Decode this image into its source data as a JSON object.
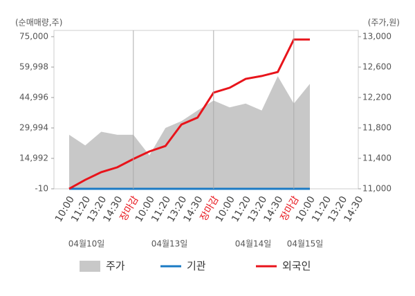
{
  "chart_data": {
    "type": "line",
    "y_label": "(순매매량,주)",
    "y2_label": "(주가,원)",
    "categories": [
      "10:00",
      "11:20",
      "13:20",
      "14:30",
      "장마감",
      "10:00",
      "11:20",
      "13:20",
      "14:30",
      "장마감",
      "10:00",
      "11:20",
      "13:20",
      "14:30",
      "장마감",
      "10:00",
      "11:20",
      "13:20",
      "14:30"
    ],
    "dates": [
      "04월10일",
      "04월13일",
      "04월14일",
      "04월15일"
    ],
    "session_close": [
      4,
      9,
      14
    ],
    "close_color": "#e8141b",
    "series": [
      {
        "name": "주가",
        "color": "#c8c8c8",
        "axis": "y2",
        "kind": "area",
        "values": [
          11710,
          11570,
          11750,
          11710,
          11710,
          11440,
          11800,
          11890,
          12030,
          12160,
          12070,
          12120,
          12030,
          12480,
          12120,
          12380,
          null,
          null,
          null
        ]
      },
      {
        "name": "기관",
        "color": "#1a7ac4",
        "values": [
          0,
          0,
          0,
          0,
          0,
          0,
          0,
          0,
          0,
          0,
          0,
          0,
          0,
          0,
          0,
          0,
          null,
          null,
          null
        ]
      },
      {
        "name": "외국인",
        "color": "#e8141b",
        "values": [
          0,
          4400,
          8200,
          10600,
          14700,
          18400,
          21100,
          31700,
          35100,
          47400,
          49800,
          54200,
          55600,
          57600,
          73600,
          73600,
          null,
          null,
          null
        ]
      }
    ],
    "ylim": [
      -10,
      75000
    ],
    "yticks": [
      -10,
      {
        "value": 14992,
        "label": "14,992"
      },
      {
        "value": 29994,
        "label": "29,994"
      },
      {
        "value": 44996,
        "label": "44,996"
      },
      {
        "value": 59998,
        "label": "59,998"
      },
      {
        "value": 75000,
        "label": "75,000"
      }
    ],
    "y2lim": [
      11000,
      13000
    ],
    "y2ticks": [
      {
        "value": 11000,
        "label": "11,000"
      },
      {
        "value": 11400,
        "label": "11,400"
      },
      {
        "value": 11800,
        "label": "11,800"
      },
      {
        "value": 12200,
        "label": "12,200"
      },
      {
        "value": 12600,
        "label": "12,600"
      },
      {
        "value": 13000,
        "label": "13,000"
      }
    ]
  }
}
